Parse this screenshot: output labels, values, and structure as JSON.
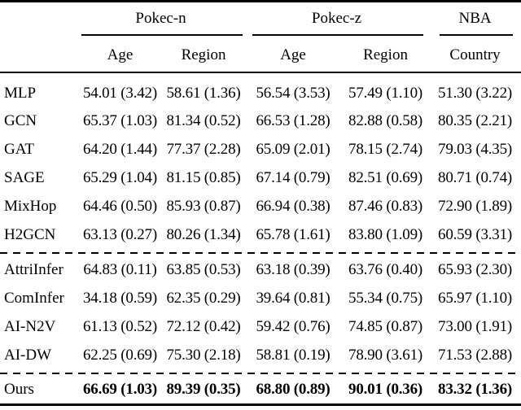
{
  "table": {
    "corner_label": "",
    "group_headers": [
      {
        "label": "Pokec-n",
        "span": 2
      },
      {
        "label": "Pokec-z",
        "span": 2
      },
      {
        "label": "NBA",
        "span": 1
      }
    ],
    "column_headers": [
      "Age",
      "Region",
      "Age",
      "Region",
      "Country"
    ],
    "sections": [
      {
        "rows": [
          {
            "label": "MLP",
            "values": [
              "54.01 (3.42)",
              "58.61 (1.36)",
              "56.54 (3.53)",
              "57.49 (1.10)",
              "51.30 (3.22)"
            ]
          },
          {
            "label": "GCN",
            "values": [
              "65.37 (1.03)",
              "81.34 (0.52)",
              "66.53 (1.28)",
              "82.88 (0.58)",
              "80.35 (2.21)"
            ]
          },
          {
            "label": "GAT",
            "values": [
              "64.20 (1.44)",
              "77.37 (2.28)",
              "65.09 (2.01)",
              "78.15 (2.74)",
              "79.03 (4.35)"
            ]
          },
          {
            "label": "SAGE",
            "values": [
              "65.29 (1.04)",
              "81.15 (0.85)",
              "67.14 (0.79)",
              "82.51 (0.69)",
              "80.71 (0.74)"
            ]
          },
          {
            "label": "MixHop",
            "values": [
              "64.46 (0.50)",
              "85.93 (0.87)",
              "66.94 (0.38)",
              "87.46 (0.83)",
              "72.90 (1.89)"
            ]
          },
          {
            "label": "H2GCN",
            "values": [
              "63.13 (0.27)",
              "80.26 (1.34)",
              "65.78 (1.61)",
              "83.80 (1.09)",
              "60.59 (3.31)"
            ]
          }
        ]
      },
      {
        "rows": [
          {
            "label": "AttriInfer",
            "values": [
              "64.83 (0.11)",
              "63.85 (0.53)",
              "63.18 (0.39)",
              "63.76 (0.40)",
              "65.93 (2.30)"
            ]
          },
          {
            "label": "ComInfer",
            "values": [
              "34.18 (0.59)",
              "62.35 (0.29)",
              "39.64 (0.81)",
              "55.34 (0.75)",
              "65.97 (1.10)"
            ]
          },
          {
            "label": "AI-N2V",
            "values": [
              "61.13 (0.52)",
              "72.12 (0.42)",
              "59.42 (0.76)",
              "74.85 (0.87)",
              "73.00 (1.91)"
            ]
          },
          {
            "label": "AI-DW",
            "values": [
              "62.25 (0.69)",
              "75.30 (2.18)",
              "58.81 (0.19)",
              "78.90 (3.61)",
              "71.53 (2.88)"
            ]
          }
        ]
      },
      {
        "bold_values": true,
        "rows": [
          {
            "label": "Ours",
            "values": [
              "66.69 (1.03)",
              "89.39 (0.35)",
              "68.80 (0.89)",
              "90.01 (0.36)",
              "83.32 (1.36)"
            ]
          }
        ]
      }
    ],
    "styles": {
      "text_color": "#000000",
      "rule_color": "#000000",
      "background": "#ffffff"
    }
  }
}
